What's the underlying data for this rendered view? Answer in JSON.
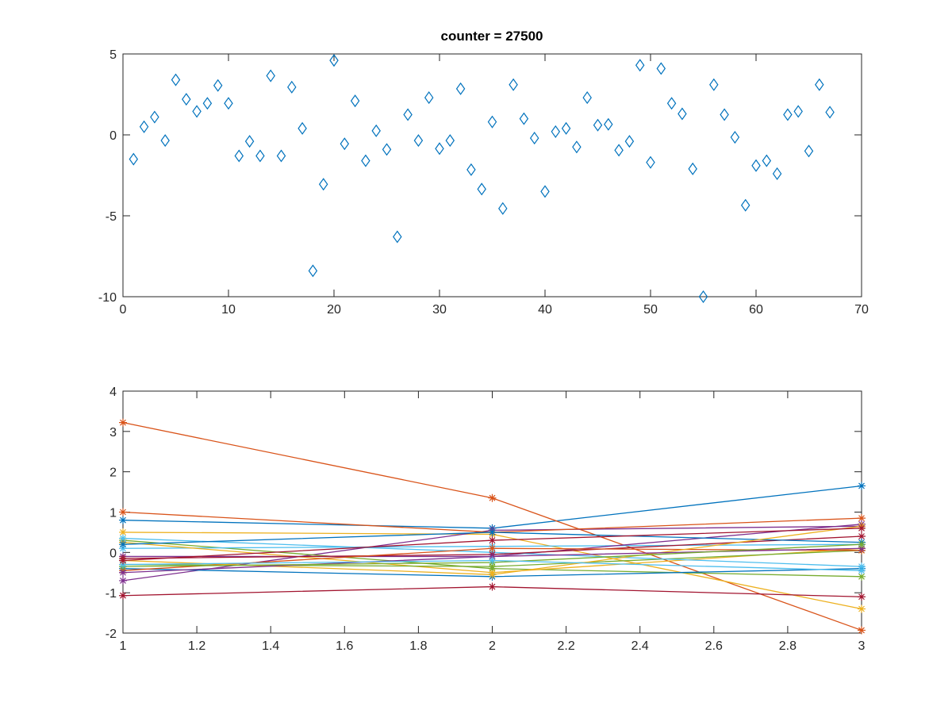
{
  "figure": {
    "background": "#ffffff"
  },
  "chart_data": [
    {
      "type": "scatter",
      "title": "counter = 27500",
      "xlabel": "",
      "ylabel": "",
      "xlim": [
        0,
        70
      ],
      "ylim": [
        -10,
        5
      ],
      "xticks": [
        0,
        10,
        20,
        30,
        40,
        50,
        60,
        70
      ],
      "yticks": [
        -10,
        -5,
        0,
        5
      ],
      "grid": false,
      "marker": "diamond",
      "color": "#0072BD",
      "x": [
        1,
        2,
        3,
        4,
        5,
        6,
        7,
        8,
        9,
        10,
        11,
        12,
        13,
        14,
        15,
        16,
        17,
        18,
        19,
        20,
        21,
        22,
        23,
        24,
        25,
        26,
        27,
        28,
        29,
        30,
        31,
        32,
        33,
        34,
        35,
        36,
        37,
        38,
        39,
        40,
        41,
        42,
        43,
        44,
        45,
        46,
        47,
        48,
        49,
        50,
        51,
        52,
        53,
        54,
        55,
        56,
        57,
        58,
        59,
        60,
        61,
        62,
        63,
        64,
        65,
        66,
        67
      ],
      "y": [
        -1.5,
        0.5,
        1.1,
        -0.35,
        3.4,
        2.2,
        1.45,
        1.95,
        3.05,
        1.95,
        -1.3,
        -0.4,
        -1.3,
        3.65,
        -1.3,
        2.95,
        0.4,
        -8.4,
        -3.05,
        4.6,
        -0.55,
        2.1,
        -1.6,
        0.25,
        -0.9,
        -6.3,
        1.25,
        -0.35,
        2.3,
        -0.85,
        -0.35,
        2.85,
        -2.15,
        -3.35,
        0.8,
        -4.55,
        3.1,
        1.0,
        -0.2,
        -3.5,
        0.2,
        0.4,
        -0.75,
        2.3,
        0.6,
        0.65,
        -0.95,
        -0.4,
        4.3,
        -1.7,
        4.1,
        1.95,
        1.3,
        -2.1,
        -10,
        3.1,
        1.25,
        -0.15,
        -4.35,
        -1.9,
        -1.6,
        -2.4,
        1.25,
        1.45,
        -1.0,
        3.1,
        1.4
      ]
    },
    {
      "type": "line",
      "title": "",
      "xlabel": "",
      "ylabel": "",
      "xlim": [
        1,
        3
      ],
      "ylim": [
        -2,
        4
      ],
      "xticks": [
        "1",
        "1.2",
        "1.4",
        "1.6",
        "1.8",
        "2",
        "2.2",
        "2.4",
        "2.6",
        "2.8",
        "3"
      ],
      "xtick_values": [
        1,
        1.2,
        1.4,
        1.6,
        1.8,
        2,
        2.2,
        2.4,
        2.6,
        2.8,
        3
      ],
      "yticks": [
        -2,
        -1,
        0,
        1,
        2,
        3,
        4
      ],
      "grid": false,
      "marker": "asterisk",
      "x": [
        1,
        2,
        3
      ],
      "series": [
        {
          "color": "#0072BD",
          "values": [
            0.8,
            0.6,
            1.65
          ]
        },
        {
          "color": "#D95319",
          "values": [
            3.22,
            1.35,
            -1.93
          ]
        },
        {
          "color": "#EDB120",
          "values": [
            0.5,
            0.45,
            -1.4
          ]
        },
        {
          "color": "#7E2F8E",
          "values": [
            -0.7,
            0.55,
            0.65
          ]
        },
        {
          "color": "#77AC30",
          "values": [
            0.3,
            -0.4,
            -0.6
          ]
        },
        {
          "color": "#4DBEEE",
          "values": [
            0.1,
            0.15,
            0.2
          ]
        },
        {
          "color": "#A2142F",
          "values": [
            -1.07,
            -0.85,
            -1.1
          ]
        },
        {
          "color": "#0072BD",
          "values": [
            -0.4,
            -0.6,
            -0.4
          ]
        },
        {
          "color": "#D95319",
          "values": [
            1.0,
            0.5,
            0.85
          ]
        },
        {
          "color": "#EDB120",
          "values": [
            0.25,
            -0.5,
            0.1
          ]
        },
        {
          "color": "#7E2F8E",
          "values": [
            -0.1,
            -0.1,
            0.7
          ]
        },
        {
          "color": "#77AC30",
          "values": [
            -0.3,
            -0.35,
            0.05
          ]
        },
        {
          "color": "#4DBEEE",
          "values": [
            0.35,
            0.0,
            -0.35
          ]
        },
        {
          "color": "#A2142F",
          "values": [
            -0.15,
            -0.05,
            0.4
          ]
        },
        {
          "color": "#0072BD",
          "values": [
            0.2,
            0.5,
            0.25
          ]
        },
        {
          "color": "#D95319",
          "values": [
            -0.45,
            0.1,
            0.05
          ]
        },
        {
          "color": "#EDB120",
          "values": [
            -0.2,
            -0.55,
            0.65
          ]
        },
        {
          "color": "#7E2F8E",
          "values": [
            -0.5,
            -0.1,
            0.1
          ]
        },
        {
          "color": "#77AC30",
          "values": [
            -0.35,
            -0.25,
            0.2
          ]
        },
        {
          "color": "#4DBEEE",
          "values": [
            -0.3,
            -0.2,
            -0.45
          ]
        },
        {
          "color": "#A2142F",
          "values": [
            -0.2,
            0.3,
            0.6
          ]
        }
      ]
    }
  ]
}
